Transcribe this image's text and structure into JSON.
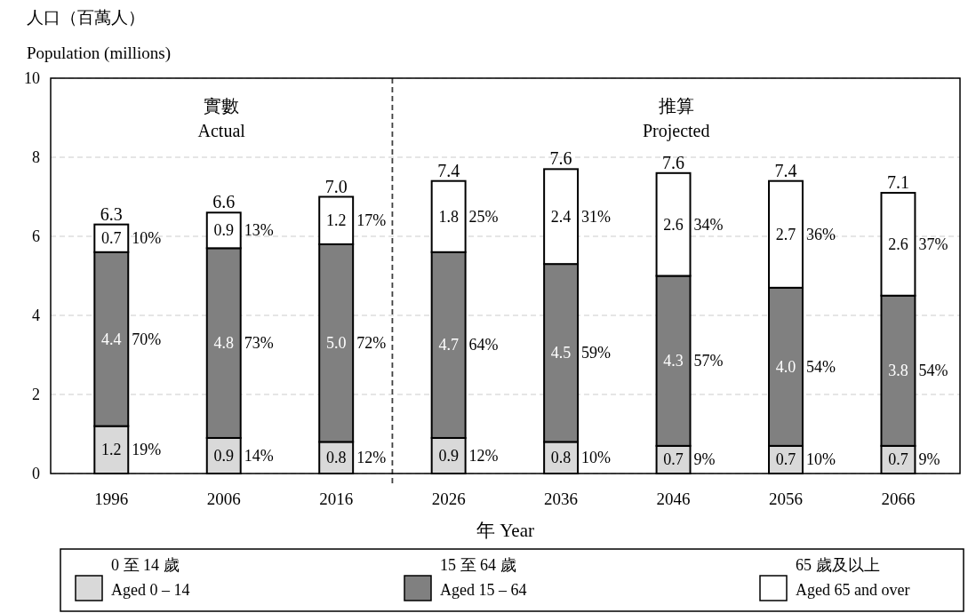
{
  "chart_data": {
    "type": "bar",
    "stacked": true,
    "ylabel": "人口（百萬人）\nPopulation (millions)",
    "xlabel": "年 Year",
    "x": [
      1996,
      2006,
      2016,
      2026,
      2036,
      2046,
      2056,
      2066
    ],
    "xlim": [
      1990.6,
      2071.5
    ],
    "xticks": [
      1996,
      2006,
      2016,
      2026,
      2036,
      2046,
      2056,
      2066
    ],
    "ylim": [
      0,
      10
    ],
    "yticks": [
      0,
      2,
      4,
      6,
      8,
      10
    ],
    "grid": "y",
    "legend": "bottom",
    "series": [
      {
        "name": "0 至 14 歲\nAged 0 – 14",
        "color": "#d9d9d9",
        "values": [
          1.2,
          0.9,
          0.8,
          0.9,
          0.8,
          0.7,
          0.7,
          0.7
        ],
        "value_labels": [
          "1.2",
          "0.9",
          "0.8",
          "0.9",
          "0.8",
          "0.7",
          "0.7",
          "0.7"
        ]
      },
      {
        "name": "15 至 64 歲\nAged 15 – 64",
        "color": "#808080",
        "values": [
          4.4,
          4.8,
          5.0,
          4.7,
          4.5,
          4.3,
          4.0,
          3.8
        ],
        "value_labels": [
          "4.4",
          "4.8",
          "5.0",
          "4.7",
          "4.5",
          "4.3",
          "4.0",
          "3.8"
        ]
      },
      {
        "name": "65 歲及以上\nAged 65 and over",
        "color": "#ffffff",
        "values": [
          0.7,
          0.9,
          1.2,
          1.8,
          2.4,
          2.6,
          2.7,
          2.6
        ],
        "value_labels": [
          "0.7",
          "0.9",
          "1.2",
          "1.8",
          "2.4",
          "2.6",
          "2.7",
          "2.6"
        ]
      }
    ],
    "totals": [
      "6.3",
      "6.6",
      "7.0",
      "7.4",
      "7.6",
      "7.6",
      "7.4",
      "7.1"
    ],
    "ref_lines": [
      {
        "axis": "x",
        "value": 2021,
        "line_style": "dashed",
        "color": "#404040"
      }
    ],
    "annotations": [
      "實數\nActual",
      "推算\nProjected",
      "19%",
      "70%",
      "10%",
      "14%",
      "73%",
      "13%",
      "12%",
      "72%",
      "17%",
      "12%",
      "64%",
      "25%",
      "10%",
      "59%",
      "31%",
      "9%",
      "57%",
      "34%",
      "10%",
      "54%",
      "36%",
      "9%",
      "54%",
      "37%"
    ]
  }
}
